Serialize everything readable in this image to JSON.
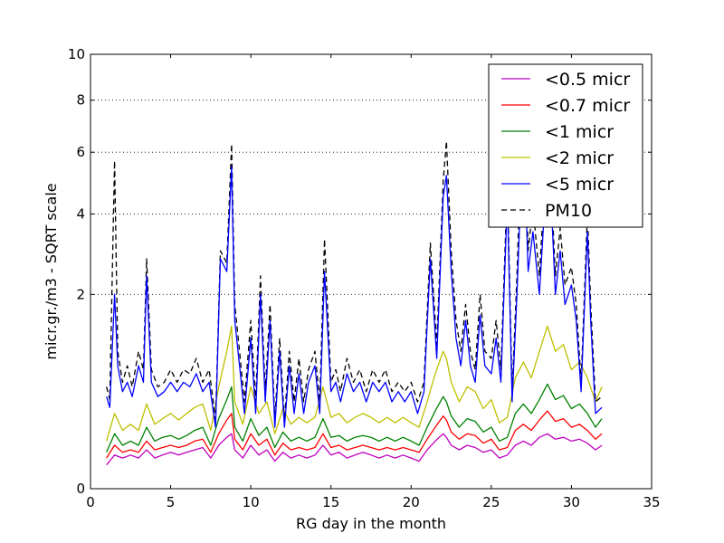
{
  "chart_data": {
    "type": "line",
    "title": "",
    "xlabel": "RG day in the month",
    "ylabel": "micr.gr./m3 - SQRT scale",
    "xlim": [
      0,
      35
    ],
    "ylim": [
      0,
      10
    ],
    "y_scale": "sqrt",
    "x_ticks": [
      0,
      5,
      10,
      15,
      20,
      25,
      30,
      35
    ],
    "y_ticks": [
      0,
      2,
      4,
      6,
      8,
      10
    ],
    "grid": "horizontal dotted",
    "legend_position": "top-right",
    "series": [
      {
        "name": "<0.5 micr",
        "color": "#bf00bf",
        "style": "solid",
        "x": [
          1,
          1.5,
          2,
          2.5,
          3,
          3.5,
          4,
          4.5,
          5,
          5.5,
          6,
          6.5,
          7,
          7.5,
          8,
          8.5,
          8.8,
          9,
          9.5,
          10,
          10.5,
          11,
          11.5,
          12,
          12.5,
          13,
          13.5,
          14,
          14.5,
          15,
          15.5,
          16,
          16.5,
          17,
          17.5,
          18,
          18.5,
          19,
          19.5,
          20,
          20.5,
          21,
          21.5,
          22,
          22.2,
          22.5,
          23,
          23.5,
          24,
          24.5,
          25,
          25.5,
          26,
          26.5,
          27,
          27.5,
          28,
          28.5,
          29,
          29.5,
          30,
          30.5,
          31,
          31.5,
          31.9
        ],
        "values": [
          0.03,
          0.06,
          0.05,
          0.06,
          0.05,
          0.08,
          0.05,
          0.06,
          0.07,
          0.06,
          0.07,
          0.08,
          0.09,
          0.05,
          0.1,
          0.14,
          0.16,
          0.08,
          0.05,
          0.1,
          0.06,
          0.08,
          0.04,
          0.07,
          0.05,
          0.06,
          0.05,
          0.06,
          0.1,
          0.06,
          0.07,
          0.05,
          0.06,
          0.07,
          0.06,
          0.05,
          0.06,
          0.05,
          0.06,
          0.05,
          0.04,
          0.08,
          0.12,
          0.16,
          0.14,
          0.1,
          0.08,
          0.1,
          0.09,
          0.07,
          0.08,
          0.05,
          0.06,
          0.1,
          0.12,
          0.1,
          0.14,
          0.16,
          0.13,
          0.14,
          0.12,
          0.13,
          0.11,
          0.08,
          0.1
        ]
      },
      {
        "name": "<0.7 micr",
        "color": "#ff0000",
        "style": "solid",
        "x": [
          1,
          1.5,
          2,
          2.5,
          3,
          3.5,
          4,
          4.5,
          5,
          5.5,
          6,
          6.5,
          7,
          7.5,
          8,
          8.5,
          8.8,
          9,
          9.5,
          10,
          10.5,
          11,
          11.5,
          12,
          12.5,
          13,
          13.5,
          14,
          14.5,
          15,
          15.5,
          16,
          16.5,
          17,
          17.5,
          18,
          18.5,
          19,
          19.5,
          20,
          20.5,
          21,
          21.5,
          22,
          22.2,
          22.5,
          23,
          23.5,
          24,
          24.5,
          25,
          25.5,
          26,
          26.5,
          27,
          27.5,
          28,
          28.5,
          29,
          29.5,
          30,
          30.5,
          31,
          31.5,
          31.9
        ],
        "values": [
          0.05,
          0.1,
          0.07,
          0.08,
          0.07,
          0.12,
          0.08,
          0.09,
          0.1,
          0.09,
          0.1,
          0.12,
          0.13,
          0.07,
          0.16,
          0.25,
          0.3,
          0.13,
          0.08,
          0.16,
          0.1,
          0.13,
          0.06,
          0.11,
          0.08,
          0.09,
          0.08,
          0.09,
          0.16,
          0.09,
          0.1,
          0.08,
          0.09,
          0.1,
          0.09,
          0.08,
          0.09,
          0.08,
          0.09,
          0.08,
          0.07,
          0.13,
          0.2,
          0.28,
          0.25,
          0.17,
          0.13,
          0.16,
          0.15,
          0.11,
          0.13,
          0.08,
          0.09,
          0.18,
          0.22,
          0.18,
          0.25,
          0.32,
          0.24,
          0.26,
          0.2,
          0.22,
          0.18,
          0.13,
          0.16
        ]
      },
      {
        "name": "<1 micr",
        "color": "#008000",
        "style": "solid",
        "x": [
          1,
          1.5,
          2,
          2.5,
          3,
          3.5,
          4,
          4.5,
          5,
          5.5,
          6,
          6.5,
          7,
          7.5,
          8,
          8.5,
          8.8,
          9,
          9.5,
          10,
          10.5,
          11,
          11.5,
          12,
          12.5,
          13,
          13.5,
          14,
          14.5,
          15,
          15.5,
          16,
          16.5,
          17,
          17.5,
          18,
          18.5,
          19,
          19.5,
          20,
          20.5,
          21,
          21.5,
          22,
          22.2,
          22.5,
          23,
          23.5,
          24,
          24.5,
          25,
          25.5,
          26,
          26.5,
          27,
          27.5,
          28,
          28.5,
          29,
          29.5,
          30,
          30.5,
          31,
          31.5,
          31.9
        ],
        "values": [
          0.07,
          0.16,
          0.1,
          0.12,
          0.1,
          0.2,
          0.12,
          0.14,
          0.15,
          0.13,
          0.15,
          0.18,
          0.2,
          0.1,
          0.26,
          0.42,
          0.55,
          0.2,
          0.12,
          0.26,
          0.15,
          0.2,
          0.09,
          0.17,
          0.12,
          0.14,
          0.12,
          0.14,
          0.26,
          0.14,
          0.15,
          0.12,
          0.14,
          0.15,
          0.14,
          0.12,
          0.14,
          0.12,
          0.14,
          0.12,
          0.1,
          0.2,
          0.32,
          0.45,
          0.4,
          0.28,
          0.2,
          0.26,
          0.24,
          0.17,
          0.2,
          0.12,
          0.14,
          0.3,
          0.38,
          0.3,
          0.42,
          0.58,
          0.42,
          0.46,
          0.34,
          0.38,
          0.3,
          0.2,
          0.26
        ]
      },
      {
        "name": "<2 micr",
        "color": "#bfbf00",
        "style": "solid",
        "x": [
          1,
          1.5,
          2,
          2.5,
          3,
          3.5,
          4,
          4.5,
          5,
          5.5,
          6,
          6.5,
          7,
          7.5,
          8,
          8.5,
          8.8,
          9,
          9.5,
          10,
          10.5,
          11,
          11.5,
          12,
          12.5,
          13,
          13.5,
          14,
          14.5,
          15,
          15.5,
          16,
          16.5,
          17,
          17.5,
          18,
          18.5,
          19,
          19.5,
          20,
          20.5,
          21,
          21.5,
          22,
          22.2,
          22.5,
          23,
          23.5,
          24,
          24.5,
          25,
          25.5,
          26,
          26.5,
          27,
          27.5,
          28,
          28.5,
          29,
          29.5,
          30,
          30.5,
          31,
          31.5,
          31.9
        ],
        "values": [
          0.12,
          0.3,
          0.18,
          0.22,
          0.18,
          0.38,
          0.22,
          0.26,
          0.3,
          0.25,
          0.3,
          0.35,
          0.38,
          0.18,
          0.55,
          1.0,
          1.4,
          0.4,
          0.22,
          0.55,
          0.3,
          0.4,
          0.16,
          0.34,
          0.22,
          0.27,
          0.23,
          0.27,
          0.55,
          0.27,
          0.3,
          0.23,
          0.27,
          0.3,
          0.27,
          0.23,
          0.27,
          0.23,
          0.27,
          0.23,
          0.2,
          0.4,
          0.7,
          1.0,
          0.9,
          0.6,
          0.4,
          0.55,
          0.5,
          0.34,
          0.42,
          0.23,
          0.27,
          0.65,
          0.85,
          0.65,
          1.0,
          1.4,
          1.0,
          1.1,
          0.75,
          0.85,
          0.65,
          0.4,
          0.55
        ]
      },
      {
        "name": "<5 micr",
        "color": "#0000ff",
        "style": "solid",
        "x": [
          1,
          1.2,
          1.5,
          1.7,
          2,
          2.3,
          2.6,
          3,
          3.3,
          3.5,
          3.8,
          4.2,
          4.6,
          5,
          5.4,
          5.8,
          6.2,
          6.6,
          7,
          7.4,
          7.8,
          8.1,
          8.5,
          8.8,
          9.0,
          9.3,
          9.6,
          10,
          10.3,
          10.6,
          10.9,
          11.2,
          11.5,
          11.8,
          12.1,
          12.4,
          12.7,
          13,
          13.3,
          13.6,
          14,
          14.3,
          14.6,
          15,
          15.3,
          15.6,
          16,
          16.4,
          16.8,
          17.2,
          17.6,
          18,
          18.4,
          18.8,
          19.2,
          19.6,
          20,
          20.4,
          20.8,
          21.2,
          21.6,
          22,
          22.2,
          22.5,
          22.8,
          23.1,
          23.4,
          23.7,
          24,
          24.3,
          24.6,
          25,
          25.3,
          25.6,
          26,
          26.3,
          26.6,
          27,
          27.3,
          27.6,
          28,
          28.3,
          28.6,
          29,
          29.3,
          29.6,
          30,
          30.3,
          30.6,
          31,
          31.2,
          31.5,
          31.9
        ],
        "values": [
          0.45,
          0.35,
          2.0,
          0.8,
          0.5,
          0.6,
          0.45,
          0.8,
          0.6,
          2.4,
          0.6,
          0.45,
          0.5,
          0.6,
          0.5,
          0.6,
          0.55,
          0.7,
          0.5,
          0.6,
          0.2,
          2.8,
          2.5,
          5.5,
          1.5,
          0.8,
          0.3,
          1.2,
          0.3,
          2.0,
          0.4,
          1.5,
          0.2,
          1.0,
          0.2,
          0.8,
          0.3,
          0.7,
          0.3,
          0.6,
          0.8,
          0.3,
          2.5,
          0.5,
          0.6,
          0.4,
          0.7,
          0.5,
          0.6,
          0.4,
          0.6,
          0.5,
          0.6,
          0.4,
          0.5,
          0.4,
          0.5,
          0.3,
          0.5,
          2.8,
          0.9,
          4.5,
          5.2,
          2.5,
          1.2,
          0.8,
          1.5,
          0.8,
          0.6,
          1.6,
          0.8,
          0.7,
          1.2,
          0.6,
          4.5,
          0.4,
          2.0,
          7.0,
          2.5,
          3.5,
          2.0,
          4.0,
          6.0,
          2.0,
          3.0,
          1.8,
          2.2,
          1.5,
          0.5,
          3.5,
          1.5,
          0.3,
          0.35
        ]
      },
      {
        "name": "PM10",
        "color": "#000000",
        "style": "dashed",
        "x": [
          1,
          1.2,
          1.5,
          1.7,
          2,
          2.3,
          2.6,
          3,
          3.3,
          3.5,
          3.8,
          4.2,
          4.6,
          5,
          5.4,
          5.8,
          6.2,
          6.6,
          7,
          7.4,
          7.8,
          8.1,
          8.5,
          8.8,
          9.0,
          9.3,
          9.6,
          10,
          10.3,
          10.6,
          10.9,
          11.2,
          11.5,
          11.8,
          12.1,
          12.4,
          12.7,
          13,
          13.3,
          13.6,
          14,
          14.3,
          14.6,
          15,
          15.3,
          15.6,
          16,
          16.4,
          16.8,
          17.2,
          17.6,
          18,
          18.4,
          18.8,
          19.2,
          19.6,
          20,
          20.4,
          20.8,
          21.2,
          21.6,
          22,
          22.2,
          22.5,
          22.8,
          23.1,
          23.4,
          23.7,
          24,
          24.3,
          24.6,
          25,
          25.3,
          25.6,
          26,
          26.3,
          26.6,
          27,
          27.3,
          27.6,
          28,
          28.3,
          28.6,
          29,
          29.3,
          29.6,
          30,
          30.3,
          30.6,
          31,
          31.2,
          31.5,
          31.9
        ],
        "values": [
          0.55,
          0.42,
          5.7,
          1.0,
          0.6,
          0.8,
          0.55,
          1.0,
          0.75,
          2.8,
          0.75,
          0.55,
          0.6,
          0.75,
          0.6,
          0.75,
          0.7,
          0.9,
          0.6,
          0.75,
          0.25,
          3.0,
          2.7,
          6.3,
          1.8,
          1.0,
          0.4,
          1.5,
          0.4,
          2.4,
          0.5,
          1.8,
          0.25,
          1.2,
          0.25,
          1.0,
          0.4,
          0.9,
          0.4,
          0.75,
          1.0,
          0.4,
          3.3,
          0.6,
          0.75,
          0.5,
          0.9,
          0.6,
          0.75,
          0.5,
          0.75,
          0.6,
          0.75,
          0.5,
          0.6,
          0.5,
          0.6,
          0.4,
          0.6,
          3.2,
          1.1,
          5.0,
          6.4,
          3.0,
          1.5,
          1.0,
          1.8,
          1.0,
          0.75,
          2.0,
          1.0,
          0.9,
          1.5,
          0.75,
          5.0,
          0.5,
          2.4,
          9.0,
          3.0,
          4.2,
          2.4,
          4.6,
          6.5,
          2.4,
          3.6,
          2.2,
          2.6,
          1.8,
          0.6,
          4.0,
          1.8,
          0.4,
          0.45
        ]
      }
    ]
  }
}
